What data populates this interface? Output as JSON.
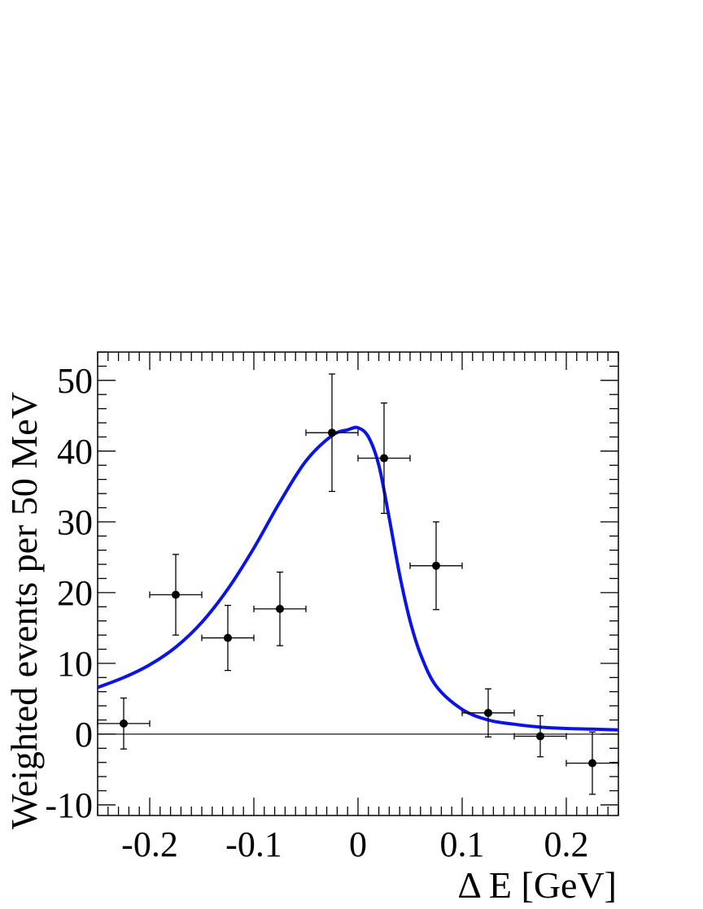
{
  "chart_data": {
    "type": "scatter",
    "xlabel": "Δ E [GeV]",
    "ylabel": "Weighted events per 50 MeV",
    "xlim": [
      -0.25,
      0.25
    ],
    "ylim": [
      -11.5,
      54
    ],
    "x_ticks": [
      {
        "value": -0.2,
        "label": "-0.2"
      },
      {
        "value": -0.1,
        "label": "-0.1"
      },
      {
        "value": 0,
        "label": "0"
      },
      {
        "value": 0.1,
        "label": "0.1"
      },
      {
        "value": 0.2,
        "label": "0.2"
      }
    ],
    "y_ticks": [
      {
        "value": -10,
        "label": "-10"
      },
      {
        "value": 0,
        "label": "0"
      },
      {
        "value": 10,
        "label": "10"
      },
      {
        "value": 20,
        "label": "20"
      },
      {
        "value": 30,
        "label": "30"
      },
      {
        "value": 40,
        "label": "40"
      },
      {
        "value": 50,
        "label": "50"
      }
    ],
    "points": [
      {
        "x": -0.225,
        "y": 1.5,
        "xerr": 0.025,
        "yerr_low": 3.6,
        "yerr_high": 3.6
      },
      {
        "x": -0.175,
        "y": 19.7,
        "xerr": 0.025,
        "yerr_low": 5.7,
        "yerr_high": 5.7
      },
      {
        "x": -0.125,
        "y": 13.6,
        "xerr": 0.025,
        "yerr_low": 4.6,
        "yerr_high": 4.6
      },
      {
        "x": -0.075,
        "y": 17.7,
        "xerr": 0.025,
        "yerr_low": 5.2,
        "yerr_high": 5.2
      },
      {
        "x": -0.025,
        "y": 42.6,
        "xerr": 0.025,
        "yerr_low": 8.3,
        "yerr_high": 8.3
      },
      {
        "x": 0.025,
        "y": 39.0,
        "xerr": 0.025,
        "yerr_low": 7.8,
        "yerr_high": 7.8
      },
      {
        "x": 0.075,
        "y": 23.8,
        "xerr": 0.025,
        "yerr_low": 6.2,
        "yerr_high": 6.2
      },
      {
        "x": 0.125,
        "y": 3.0,
        "xerr": 0.025,
        "yerr_low": 3.4,
        "yerr_high": 3.4
      },
      {
        "x": 0.175,
        "y": -0.3,
        "xerr": 0.025,
        "yerr_low": 2.9,
        "yerr_high": 2.9
      },
      {
        "x": 0.225,
        "y": -4.1,
        "xerr": 0.025,
        "yerr_low": 4.4,
        "yerr_high": 4.4
      }
    ],
    "fit_curve": {
      "color": "#0a14e6",
      "x": [
        -0.25,
        -0.225,
        -0.2,
        -0.175,
        -0.15,
        -0.125,
        -0.1,
        -0.075,
        -0.05,
        -0.025,
        -0.01,
        0,
        0.01,
        0.02,
        0.03,
        0.04,
        0.05,
        0.06,
        0.075,
        0.1,
        0.125,
        0.15,
        0.175,
        0.2,
        0.225,
        0.25
      ],
      "y": [
        6.6,
        8.0,
        9.8,
        12.3,
        15.8,
        20.5,
        26.3,
        32.8,
        38.6,
        42.2,
        43.0,
        43.3,
        42.0,
        38.0,
        30.5,
        22.5,
        16.0,
        11.3,
        6.8,
        3.5,
        2.0,
        1.4,
        1.0,
        0.8,
        0.7,
        0.6
      ]
    },
    "zero_line": true,
    "grid": false,
    "legend": "none"
  }
}
